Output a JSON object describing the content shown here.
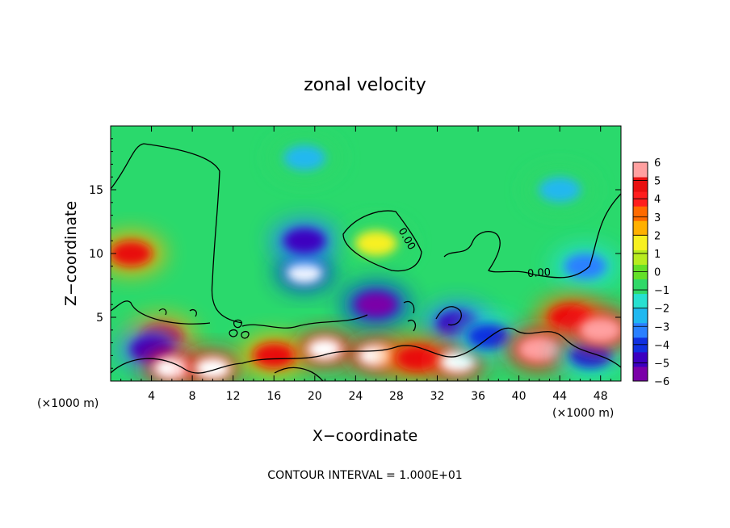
{
  "chart_data": {
    "type": "heatmap",
    "title": "zonal velocity",
    "xlabel": "X−coordinate",
    "ylabel": "Z−coordinate",
    "x_unit_left": "(×1000 m)",
    "x_unit_right": "(×1000 m)",
    "footer": "CONTOUR INTERVAL = 1.000E+01",
    "xlim": [
      0,
      50
    ],
    "ylim": [
      0,
      20
    ],
    "x_ticks": [
      4,
      8,
      12,
      16,
      20,
      24,
      28,
      32,
      36,
      40,
      44,
      48
    ],
    "x_tick_labels": [
      "4",
      "8",
      "12",
      "16",
      "20",
      "24",
      "28",
      "32",
      "36",
      "40",
      "44",
      "48"
    ],
    "y_ticks": [
      5,
      10,
      15
    ],
    "y_tick_labels": [
      "5",
      "10",
      "15"
    ],
    "colorbar": {
      "min": -6,
      "max": 6,
      "ticks": [
        6,
        5,
        4,
        3,
        2,
        1,
        0,
        -1,
        -2,
        -3,
        -4,
        -5,
        -6
      ],
      "tick_labels": [
        "6",
        "5",
        "4",
        "3",
        "2",
        "1",
        "0",
        "−1",
        "−2",
        "−3",
        "−4",
        "−5",
        "−6"
      ],
      "colors": [
        "#7a00a8",
        "#3c00c0",
        "#1030e0",
        "#2a80ff",
        "#20b8f0",
        "#28e0d0",
        "#30d868",
        "#64e028",
        "#b8ec20",
        "#f8f020",
        "#ffb000",
        "#ff6a00",
        "#ff1e1e",
        "#e81010",
        "#ffa0a0"
      ]
    },
    "contour_labels": [
      "0.00",
      "0.00"
    ],
    "features": [
      {
        "x": 2,
        "z": 10,
        "value": 4.5
      },
      {
        "x": 5,
        "z": 3.5,
        "value": 4.5
      },
      {
        "x": 19,
        "z": 8.5,
        "value": -8
      },
      {
        "x": 19,
        "z": 11,
        "value": -5
      },
      {
        "x": 19,
        "z": 17.5,
        "value": -2.5
      },
      {
        "x": 26,
        "z": 10.8,
        "value": 1.5
      },
      {
        "x": 44,
        "z": 15,
        "value": -2.5
      },
      {
        "x": 46.5,
        "z": 9,
        "value": -3.5
      },
      {
        "x": 26,
        "z": 6,
        "value": -6
      },
      {
        "x": 34,
        "z": 4.5,
        "value": -5
      },
      {
        "x": 45,
        "z": 5,
        "value": 5
      },
      {
        "x": 4,
        "z": 2.5,
        "value": -5
      },
      {
        "x": 6,
        "z": 1,
        "value": 7
      },
      {
        "x": 10,
        "z": 1,
        "value": 7
      },
      {
        "x": 16,
        "z": 2,
        "value": 4.5
      },
      {
        "x": 21,
        "z": 2.5,
        "value": 6.5
      },
      {
        "x": 26,
        "z": 2,
        "value": 6.5
      },
      {
        "x": 30,
        "z": 1.8,
        "value": 5
      },
      {
        "x": 34,
        "z": 1.5,
        "value": 7
      },
      {
        "x": 37,
        "z": 3.5,
        "value": -4
      },
      {
        "x": 42,
        "z": 2.5,
        "value": 6
      },
      {
        "x": 47,
        "z": 2,
        "value": -4
      },
      {
        "x": 48,
        "z": 4,
        "value": 6
      }
    ]
  }
}
